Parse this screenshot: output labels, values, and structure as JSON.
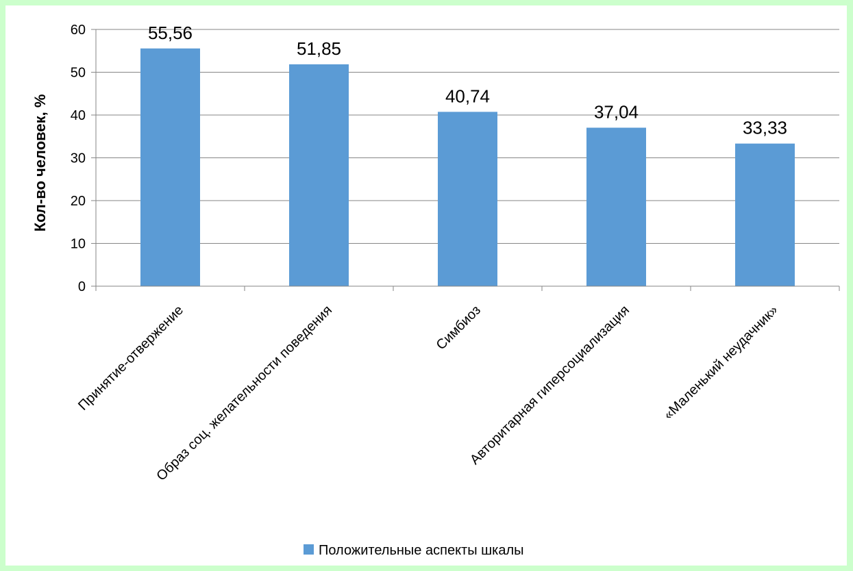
{
  "chart_data": {
    "type": "bar",
    "categories": [
      "Принятие-отвержение",
      "Образ соц. желательности поведения",
      "Симбиоз",
      "Авторитарная гиперсоциализация",
      "«Маленький неудачник»"
    ],
    "series": [
      {
        "name": "Положительные аспекты шкалы",
        "values": [
          55.56,
          51.85,
          40.74,
          37.04,
          33.33
        ],
        "data_labels": [
          "55,56",
          "51,85",
          "40,74",
          "37,04",
          "33,33"
        ],
        "color": "#5b9bd5"
      }
    ],
    "ylabel": "Кол-во человек, %",
    "xlabel": "",
    "ylim": [
      0,
      60
    ],
    "yticks": [
      0,
      10,
      20,
      30,
      40,
      50,
      60
    ],
    "grid": true,
    "legend": "bottom-center"
  },
  "colors": {
    "background": "#ccffcc",
    "plot_background": "#ffffff",
    "gridline": "#868686",
    "bar": "#5b9bd5"
  }
}
